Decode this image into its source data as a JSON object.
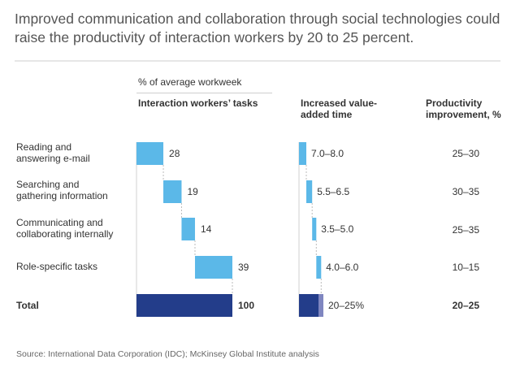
{
  "title": "Improved communication and collaboration through social technologies could raise the productivity of interaction workers by 20 to 25 percent.",
  "unit_label": "% of average workweek",
  "headers": {
    "tasks": "Interaction workers’ tasks",
    "value_added": "Increased value-added time",
    "productivity": "Productivity improvement, %"
  },
  "source": "Source: International Data Corporation (IDC); McKinsey Global Institute analysis",
  "colors": {
    "bar_light": "#5bb8e8",
    "bar_dark": "#233d8a",
    "bar_total_light": "#7f86c0",
    "axis": "#d0d0d0",
    "connector": "#bbbbbb"
  },
  "chart_data": [
    {
      "type": "bar",
      "subtype": "waterfall",
      "title": "Interaction workers’ tasks",
      "ylabel": "% of average workweek",
      "categories": [
        "Reading and answering e-mail",
        "Searching and gathering information",
        "Communicating and collaborating internally",
        "Role-specific tasks",
        "Total"
      ],
      "values": [
        28,
        19,
        14,
        39,
        100
      ],
      "labels": [
        "28",
        "19",
        "14",
        "39",
        "100"
      ],
      "xlim": [
        0,
        100
      ]
    },
    {
      "type": "bar",
      "subtype": "waterfall-range",
      "title": "Increased value-added time",
      "categories": [
        "Reading and answering e-mail",
        "Searching and gathering information",
        "Communicating and collaborating internally",
        "Role-specific tasks",
        "Total"
      ],
      "ranges": [
        [
          7.0,
          8.0
        ],
        [
          5.5,
          6.5
        ],
        [
          3.5,
          5.0
        ],
        [
          4.0,
          6.0
        ],
        [
          20,
          25
        ]
      ],
      "labels": [
        "7.0–8.0",
        "5.5–6.5",
        "3.5–5.0",
        "4.0–6.0",
        "20–25%"
      ]
    },
    {
      "type": "table",
      "title": "Productivity improvement, %",
      "categories": [
        "Reading and answering e-mail",
        "Searching and gathering information",
        "Communicating and collaborating internally",
        "Role-specific tasks",
        "Total"
      ],
      "values": [
        "25–30",
        "30–35",
        "25–35",
        "10–15",
        "20–25"
      ]
    }
  ],
  "rows": [
    {
      "label_line1": "Reading and",
      "label_line2": "answering e-mail"
    },
    {
      "label_line1": "Searching and",
      "label_line2": "gathering information"
    },
    {
      "label_line1": "Communicating and",
      "label_line2": "collaborating internally"
    },
    {
      "label_line1": "Role-specific tasks",
      "label_line2": ""
    },
    {
      "label_line1": "Total",
      "label_line2": ""
    }
  ]
}
